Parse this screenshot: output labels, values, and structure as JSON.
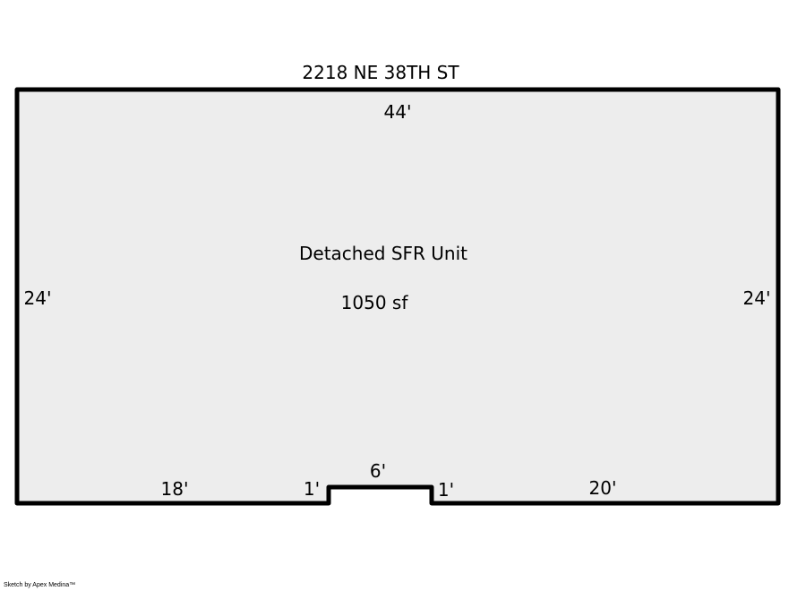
{
  "title": "2218 NE 38TH ST",
  "area": {
    "name": "Detached SFR Unit",
    "size": "1050 sf"
  },
  "dimensions": {
    "top": "44'",
    "left": "24'",
    "right": "24'",
    "bottom_left": "18'",
    "notch_left": "1'",
    "notch_top": "6'",
    "notch_right": "1'",
    "bottom_right": "20'"
  },
  "credit": "Sketch by Apex Medina™",
  "colors": {
    "fill": "#ededed",
    "stroke": "#000000"
  }
}
